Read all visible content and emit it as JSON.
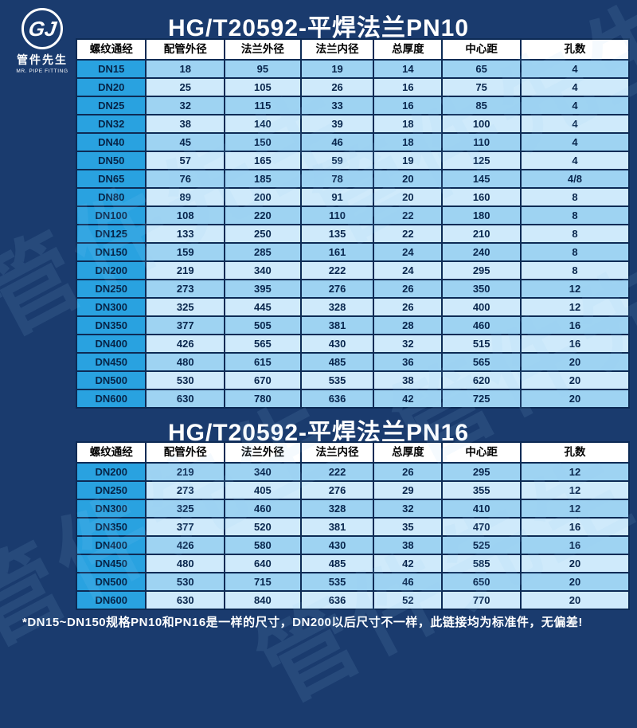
{
  "logo": {
    "monogram": "GJ",
    "name": "管件先生",
    "subtitle": "MR. PIPE FITTING"
  },
  "watermark": "管件先生",
  "colors": {
    "background": "#1a3b6e",
    "border": "#0d2b55",
    "row_header": "#29a2e0",
    "row_odd": "#9ed3f2",
    "row_even": "#cfeafb",
    "header_bg": "#ffffff",
    "title_text": "#ffffff"
  },
  "sections": [
    {
      "title": "HG/T20592-平焊法兰PN10",
      "headers": [
        "螺纹通经",
        "配管外径",
        "法兰外径",
        "法兰内径",
        "总厚度",
        "中心距",
        "孔数"
      ],
      "rows": [
        [
          "DN15",
          "18",
          "95",
          "19",
          "14",
          "65",
          "4"
        ],
        [
          "DN20",
          "25",
          "105",
          "26",
          "16",
          "75",
          "4"
        ],
        [
          "DN25",
          "32",
          "115",
          "33",
          "16",
          "85",
          "4"
        ],
        [
          "DN32",
          "38",
          "140",
          "39",
          "18",
          "100",
          "4"
        ],
        [
          "DN40",
          "45",
          "150",
          "46",
          "18",
          "110",
          "4"
        ],
        [
          "DN50",
          "57",
          "165",
          "59",
          "19",
          "125",
          "4"
        ],
        [
          "DN65",
          "76",
          "185",
          "78",
          "20",
          "145",
          "4/8"
        ],
        [
          "DN80",
          "89",
          "200",
          "91",
          "20",
          "160",
          "8"
        ],
        [
          "DN100",
          "108",
          "220",
          "110",
          "22",
          "180",
          "8"
        ],
        [
          "DN125",
          "133",
          "250",
          "135",
          "22",
          "210",
          "8"
        ],
        [
          "DN150",
          "159",
          "285",
          "161",
          "24",
          "240",
          "8"
        ],
        [
          "DN200",
          "219",
          "340",
          "222",
          "24",
          "295",
          "8"
        ],
        [
          "DN250",
          "273",
          "395",
          "276",
          "26",
          "350",
          "12"
        ],
        [
          "DN300",
          "325",
          "445",
          "328",
          "26",
          "400",
          "12"
        ],
        [
          "DN350",
          "377",
          "505",
          "381",
          "28",
          "460",
          "16"
        ],
        [
          "DN400",
          "426",
          "565",
          "430",
          "32",
          "515",
          "16"
        ],
        [
          "DN450",
          "480",
          "615",
          "485",
          "36",
          "565",
          "20"
        ],
        [
          "DN500",
          "530",
          "670",
          "535",
          "38",
          "620",
          "20"
        ],
        [
          "DN600",
          "630",
          "780",
          "636",
          "42",
          "725",
          "20"
        ]
      ]
    },
    {
      "title": "HG/T20592-平焊法兰PN16",
      "headers": [
        "螺纹通经",
        "配管外径",
        "法兰外径",
        "法兰内径",
        "总厚度",
        "中心距",
        "孔数"
      ],
      "rows": [
        [
          "DN200",
          "219",
          "340",
          "222",
          "26",
          "295",
          "12"
        ],
        [
          "DN250",
          "273",
          "405",
          "276",
          "29",
          "355",
          "12"
        ],
        [
          "DN300",
          "325",
          "460",
          "328",
          "32",
          "410",
          "12"
        ],
        [
          "DN350",
          "377",
          "520",
          "381",
          "35",
          "470",
          "16"
        ],
        [
          "DN400",
          "426",
          "580",
          "430",
          "38",
          "525",
          "16"
        ],
        [
          "DN450",
          "480",
          "640",
          "485",
          "42",
          "585",
          "20"
        ],
        [
          "DN500",
          "530",
          "715",
          "535",
          "46",
          "650",
          "20"
        ],
        [
          "DN600",
          "630",
          "840",
          "636",
          "52",
          "770",
          "20"
        ]
      ]
    }
  ],
  "footnote": "*DN15~DN150规格PN10和PN16是一样的尺寸，DN200以后尺寸不一样，此链接均为标准件，无偏差!"
}
